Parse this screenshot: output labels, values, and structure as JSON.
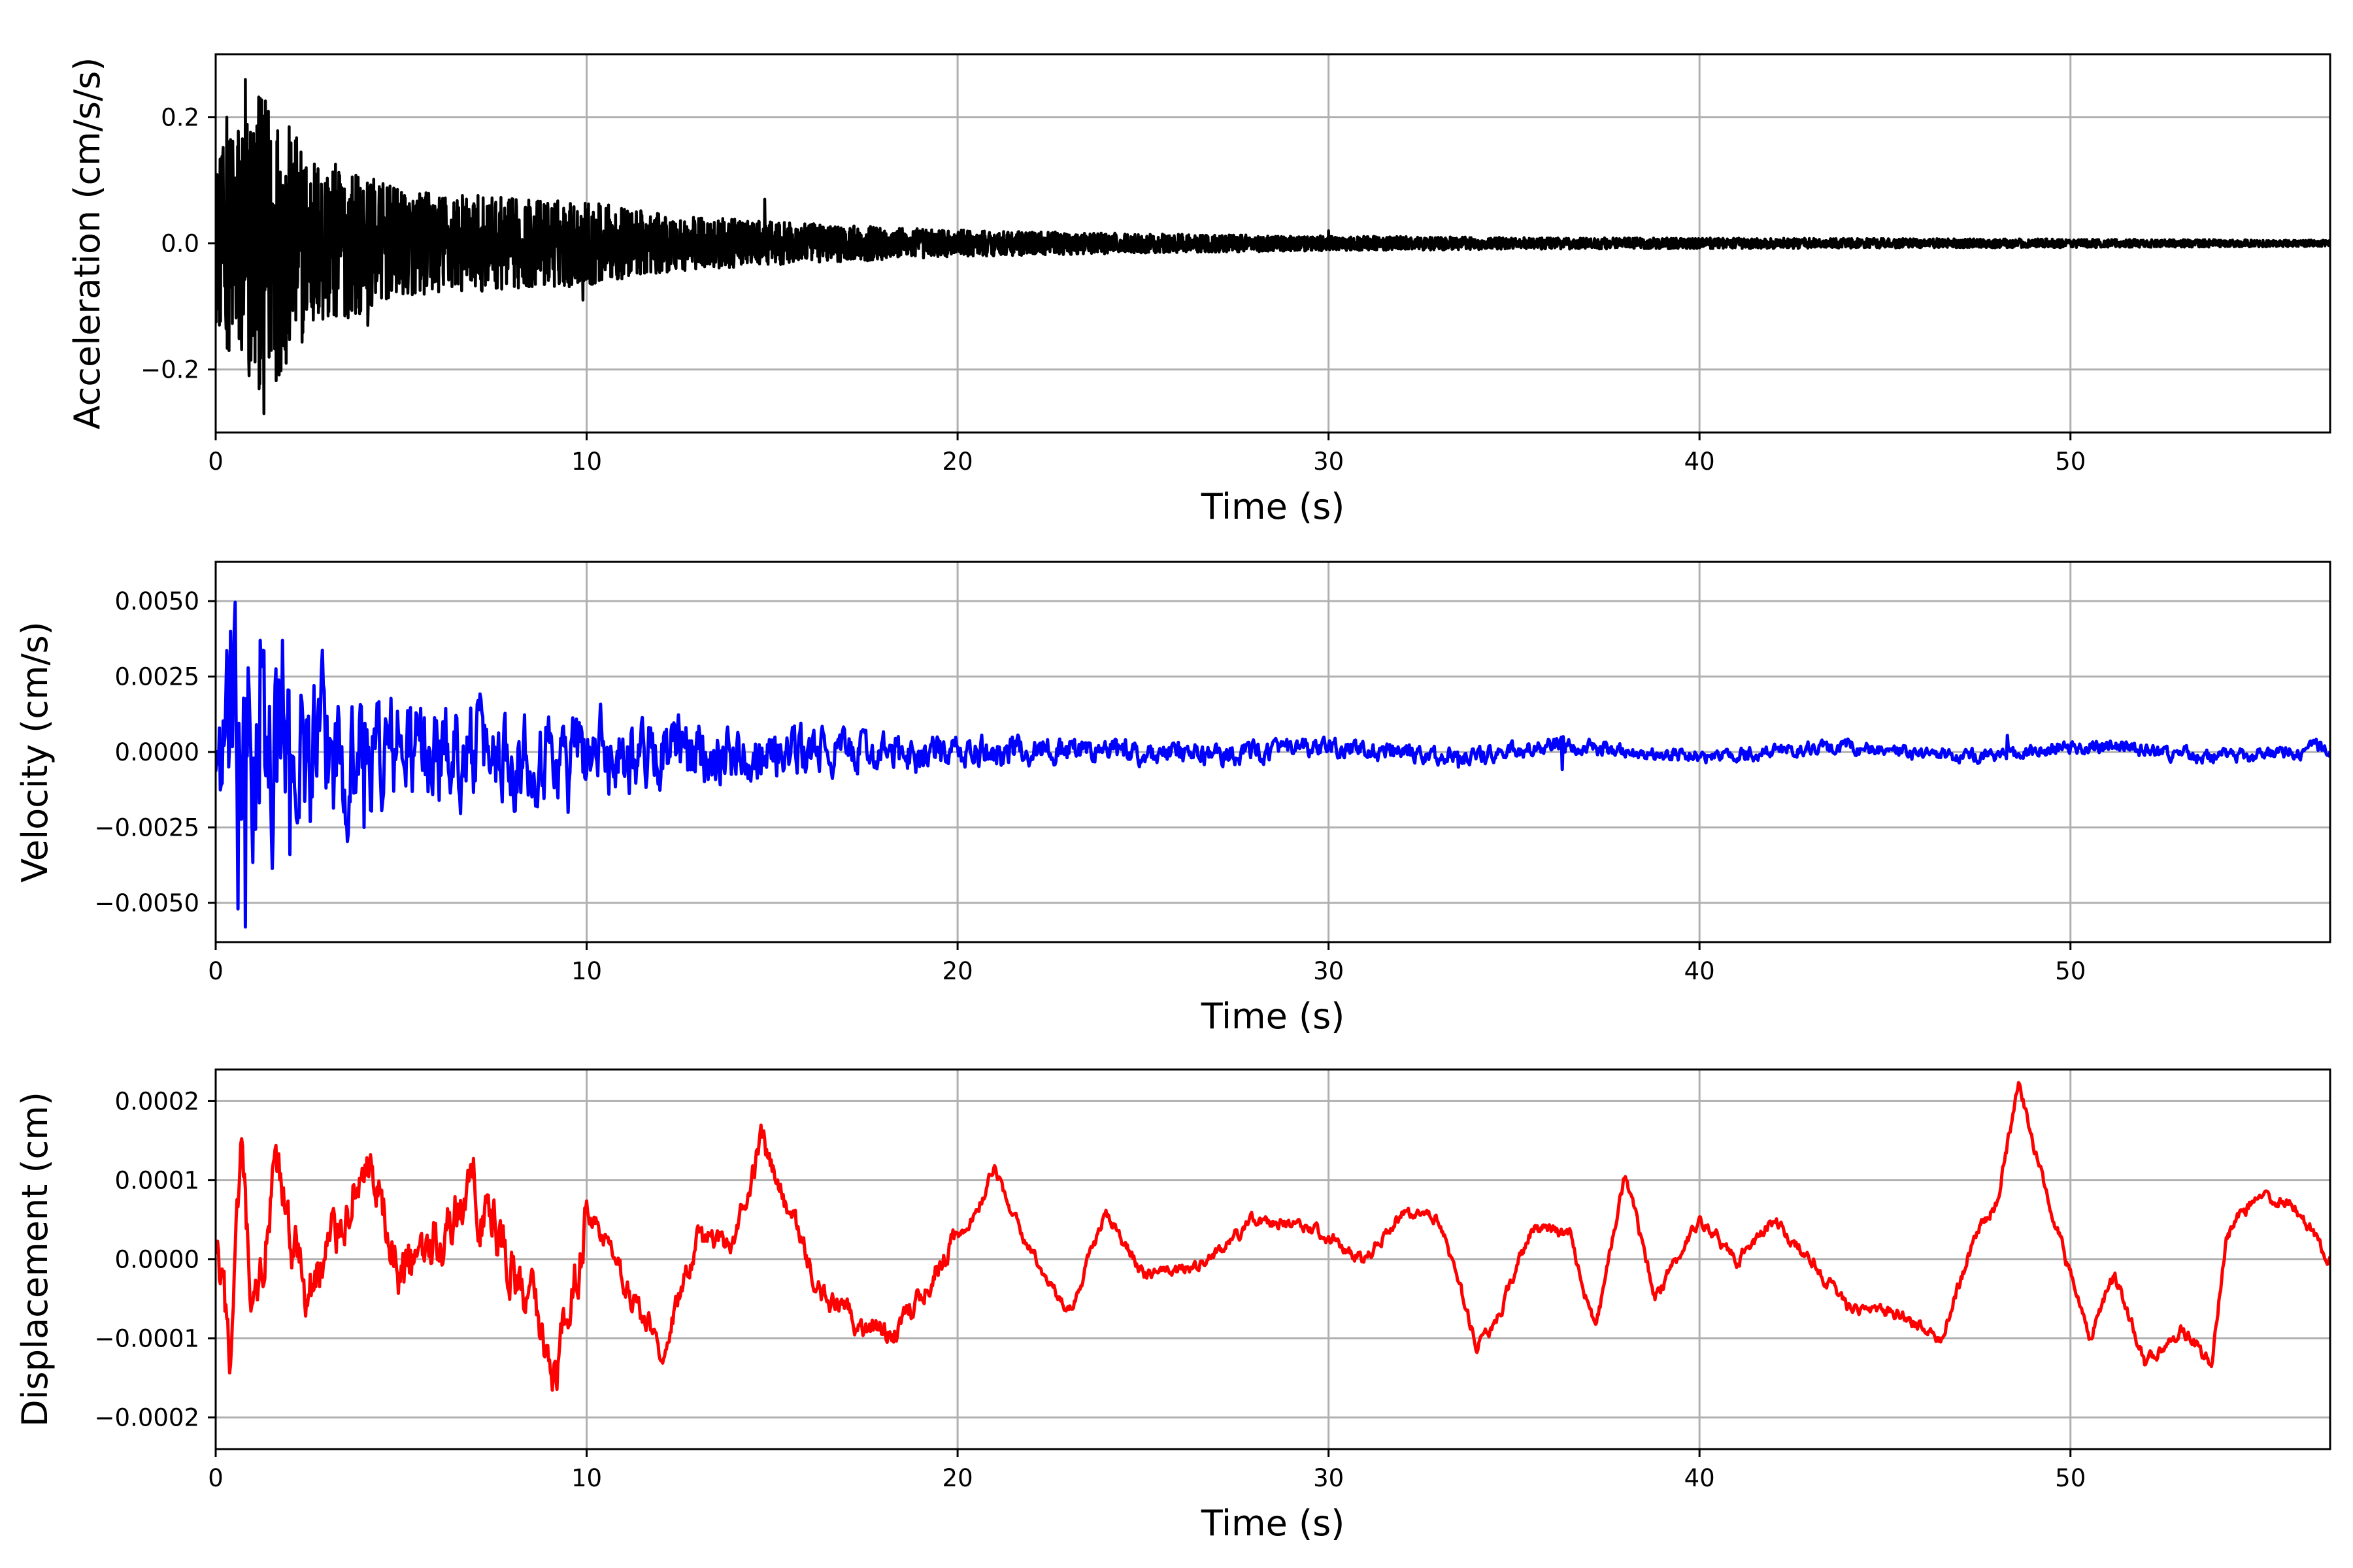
{
  "chart_data": [
    {
      "type": "line",
      "xlabel": "Time (s)",
      "ylabel": "Acceleration (cm/s/s)",
      "xlim": [
        0,
        57
      ],
      "ylim": [
        -0.3,
        0.3
      ],
      "xticks": [
        0,
        10,
        20,
        30,
        40,
        50
      ],
      "xtick_labels": [
        "0",
        "10",
        "20",
        "30",
        "40",
        "50"
      ],
      "yticks": [
        0.2,
        0.0,
        -0.2
      ],
      "ytick_labels": [
        "0.2",
        "0.0",
        "−0.2"
      ],
      "grid": true,
      "series": [
        {
          "color": "#000000",
          "envelope": [
            [
              0,
              0.15
            ],
            [
              0.7,
              0.26
            ],
            [
              1.4,
              0.28
            ],
            [
              2.5,
              0.17
            ],
            [
              5,
              0.1
            ],
            [
              8,
              0.085
            ],
            [
              10,
              0.08
            ],
            [
              12,
              0.055
            ],
            [
              15,
              0.04
            ],
            [
              20,
              0.025
            ],
            [
              25,
              0.018
            ],
            [
              30,
              0.014
            ],
            [
              35,
              0.011
            ],
            [
              40,
              0.01
            ],
            [
              45,
              0.009
            ],
            [
              50,
              0.008
            ],
            [
              57,
              0.006
            ]
          ],
          "peaks": [
            [
              0.3,
              0.2
            ],
            [
              0.8,
              0.26
            ],
            [
              1.2,
              0.23
            ],
            [
              1.3,
              -0.27
            ],
            [
              0.9,
              -0.21
            ],
            [
              1.9,
              -0.19
            ],
            [
              4.1,
              -0.13
            ],
            [
              9.9,
              -0.09
            ],
            [
              14.8,
              0.07
            ],
            [
              30,
              0.02
            ]
          ]
        }
      ]
    },
    {
      "type": "line",
      "xlabel": "Time (s)",
      "ylabel": "Velocity (cm/s)",
      "xlim": [
        0,
        57
      ],
      "ylim": [
        -0.0063,
        0.0063
      ],
      "xticks": [
        0,
        10,
        20,
        30,
        40,
        50
      ],
      "xtick_labels": [
        "0",
        "10",
        "20",
        "30",
        "40",
        "50"
      ],
      "yticks": [
        0.005,
        0.0025,
        0.0,
        -0.0025,
        -0.005
      ],
      "ytick_labels": [
        "0.0050",
        "0.0025",
        "0.0000",
        "−0.0025",
        "−0.0050"
      ],
      "grid": true,
      "series": [
        {
          "color": "#0000ff",
          "envelope": [
            [
              0,
              0.003
            ],
            [
              0.5,
              0.0045
            ],
            [
              0.8,
              0.0055
            ],
            [
              2,
              0.0035
            ],
            [
              4,
              0.0028
            ],
            [
              6,
              0.0022
            ],
            [
              10,
              0.0018
            ],
            [
              14,
              0.0012
            ],
            [
              18,
              0.0008
            ],
            [
              22,
              0.0006
            ],
            [
              30,
              0.0004
            ],
            [
              40,
              0.0003
            ],
            [
              57,
              0.0003
            ]
          ],
          "peaks": [
            [
              0.4,
              0.004
            ],
            [
              0.6,
              -0.0052
            ],
            [
              0.8,
              -0.0058
            ],
            [
              1.2,
              0.0037
            ],
            [
              1.8,
              0.0037
            ],
            [
              2,
              -0.0034
            ],
            [
              4,
              0.003
            ],
            [
              4,
              -0.0025
            ],
            [
              9.5,
              -0.002
            ],
            [
              48.3,
              0.00055
            ],
            [
              33.5,
              -0.0005
            ],
            [
              36.3,
              -0.00058
            ]
          ]
        }
      ]
    },
    {
      "type": "line",
      "xlabel": "Time (s)",
      "ylabel": "Displacement (cm)",
      "xlim": [
        0,
        57
      ],
      "ylim": [
        -0.00024,
        0.00024
      ],
      "xticks": [
        0,
        10,
        20,
        30,
        40,
        50
      ],
      "xtick_labels": [
        "0",
        "10",
        "20",
        "30",
        "40",
        "50"
      ],
      "yticks": [
        0.0002,
        0.0001,
        0.0,
        -0.0001,
        -0.0002
      ],
      "ytick_labels": [
        "0.0002",
        "0.0001",
        "0.0000",
        "−0.0001",
        "−0.0002"
      ],
      "grid": true,
      "series": [
        {
          "color": "#ff0000",
          "trend": [
            [
              0,
              0.0
            ],
            [
              0.4,
              -0.00013
            ],
            [
              0.7,
              0.00012
            ],
            [
              1.0,
              -0.0001
            ],
            [
              1.6,
              0.0001
            ],
            [
              2.5,
              -5e-05
            ],
            [
              4.0,
              0.00012
            ],
            [
              5.0,
              -3e-05
            ],
            [
              7.0,
              9e-05
            ],
            [
              9.2,
              -0.000135
            ],
            [
              10.0,
              6e-05
            ],
            [
              12.0,
              -0.000115
            ],
            [
              13.0,
              2e-05
            ],
            [
              14.0,
              3e-05
            ],
            [
              14.7,
              0.00015
            ],
            [
              15.5,
              5e-05
            ],
            [
              16.5,
              -6e-05
            ],
            [
              17.5,
              -8e-05
            ],
            [
              18.5,
              -9e-05
            ],
            [
              19.5,
              0.0
            ],
            [
              20.5,
              6e-05
            ],
            [
              21.0,
              0.00012
            ],
            [
              21.5,
              5e-05
            ],
            [
              23.0,
              -7e-05
            ],
            [
              24.0,
              6e-05
            ],
            [
              25.0,
              -2e-05
            ],
            [
              26.5,
              -1e-05
            ],
            [
              28.0,
              5e-05
            ],
            [
              29.5,
              4e-05
            ],
            [
              31.0,
              0.0
            ],
            [
              32.0,
              6e-05
            ],
            [
              33.0,
              5e-05
            ],
            [
              34.0,
              -0.00011
            ],
            [
              34.5,
              -8e-05
            ],
            [
              35.5,
              4e-05
            ],
            [
              36.5,
              3e-05
            ],
            [
              37.2,
              -9e-05
            ],
            [
              38.0,
              0.00011
            ],
            [
              38.8,
              -5e-05
            ],
            [
              40.0,
              5e-05
            ],
            [
              41.0,
              0.0
            ],
            [
              42.0,
              5e-05
            ],
            [
              43.0,
              0.0
            ],
            [
              44.0,
              -6e-05
            ],
            [
              45.5,
              -7e-05
            ],
            [
              46.5,
              -0.0001
            ],
            [
              47.5,
              4e-05
            ],
            [
              48.0,
              7e-05
            ],
            [
              48.6,
              0.00022
            ],
            [
              49.2,
              0.00011
            ],
            [
              50.0,
              -2e-05
            ],
            [
              50.5,
              -0.0001
            ],
            [
              51.2,
              -2e-05
            ],
            [
              52.0,
              -0.00013
            ],
            [
              53.0,
              -9e-05
            ],
            [
              53.8,
              -0.00013
            ],
            [
              54.2,
              3e-05
            ],
            [
              55.0,
              8e-05
            ],
            [
              56.0,
              7e-05
            ],
            [
              57.0,
              0.0
            ]
          ]
        }
      ]
    }
  ]
}
